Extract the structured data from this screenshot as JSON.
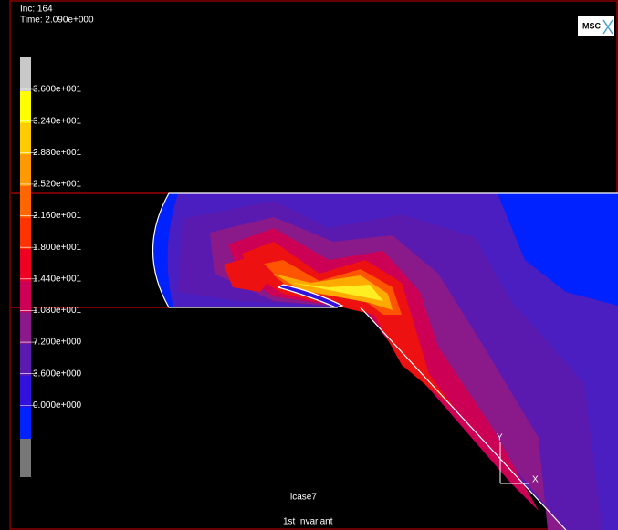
{
  "header": {
    "increment": "Inc:  164",
    "time": "Time:  2.090e+000",
    "logo": "MSC"
  },
  "legend": [
    {
      "label": "3.600e+001",
      "color": "#ffff00"
    },
    {
      "label": "3.240e+001",
      "color": "#ffcc00"
    },
    {
      "label": "2.880e+001",
      "color": "#ff9900"
    },
    {
      "label": "2.520e+001",
      "color": "#ff6600"
    },
    {
      "label": "2.160e+001",
      "color": "#ff3300"
    },
    {
      "label": "1.800e+001",
      "color": "#ee0022"
    },
    {
      "label": "1.440e+001",
      "color": "#cc0055"
    },
    {
      "label": "1.080e+001",
      "color": "#8a1a8a"
    },
    {
      "label": "7.200e+000",
      "color": "#5a1ab0"
    },
    {
      "label": "3.600e+000",
      "color": "#3311dd"
    },
    {
      "label": "0.000e+000",
      "color": "#0022ff"
    }
  ],
  "axes": {
    "y": "Y",
    "x": "X"
  },
  "footer": {
    "load_case": "lcase7",
    "quantity": "1st Invariant"
  }
}
